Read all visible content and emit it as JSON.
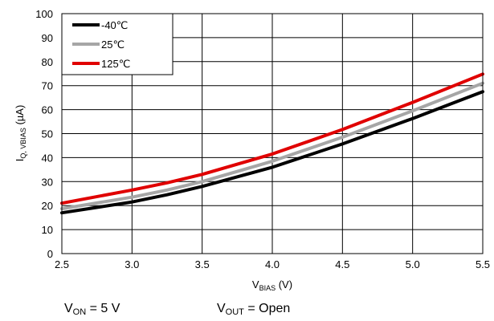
{
  "chart_data": {
    "type": "line",
    "xlabel": {
      "main": "V",
      "sub": "BIAS",
      "unit": " (V)"
    },
    "ylabel": {
      "main": "I",
      "sub": "Q, VBIAS",
      "unit": " (µA)"
    },
    "xlim": [
      2.5,
      5.5
    ],
    "ylim": [
      0,
      100
    ],
    "x_ticks": [
      "2.5",
      "3.0",
      "3.5",
      "4.0",
      "4.5",
      "5.0",
      "5.5"
    ],
    "y_ticks": [
      "0",
      "10",
      "20",
      "30",
      "40",
      "50",
      "60",
      "70",
      "80",
      "90",
      "100"
    ],
    "grid": true,
    "legend_position": "top-left",
    "series": [
      {
        "name": "-40℃",
        "color": "#000000",
        "x": [
          2.5,
          3.0,
          3.25,
          3.5,
          4.0,
          4.5,
          5.0,
          5.5
        ],
        "y": [
          17.0,
          21.5,
          24.5,
          28.0,
          36.0,
          45.7,
          56.3,
          67.5
        ]
      },
      {
        "name": "25℃",
        "color": "#a6a6a6",
        "x": [
          2.5,
          3.0,
          3.25,
          3.5,
          4.0,
          4.5,
          5.0,
          5.5
        ],
        "y": [
          18.7,
          23.5,
          26.5,
          30.0,
          38.5,
          48.5,
          59.5,
          71.0
        ]
      },
      {
        "name": "125℃",
        "color": "#e00000",
        "x": [
          2.5,
          3.0,
          3.25,
          3.5,
          4.0,
          4.5,
          5.0,
          5.5
        ],
        "y": [
          21.0,
          26.5,
          29.5,
          33.0,
          41.5,
          51.7,
          63.0,
          74.8
        ]
      }
    ]
  },
  "conditions": {
    "von": {
      "main": "V",
      "sub": "ON",
      "rest": " = 5 V"
    },
    "vout": {
      "main": "V",
      "sub": "OUT",
      "rest": " = Open"
    }
  }
}
